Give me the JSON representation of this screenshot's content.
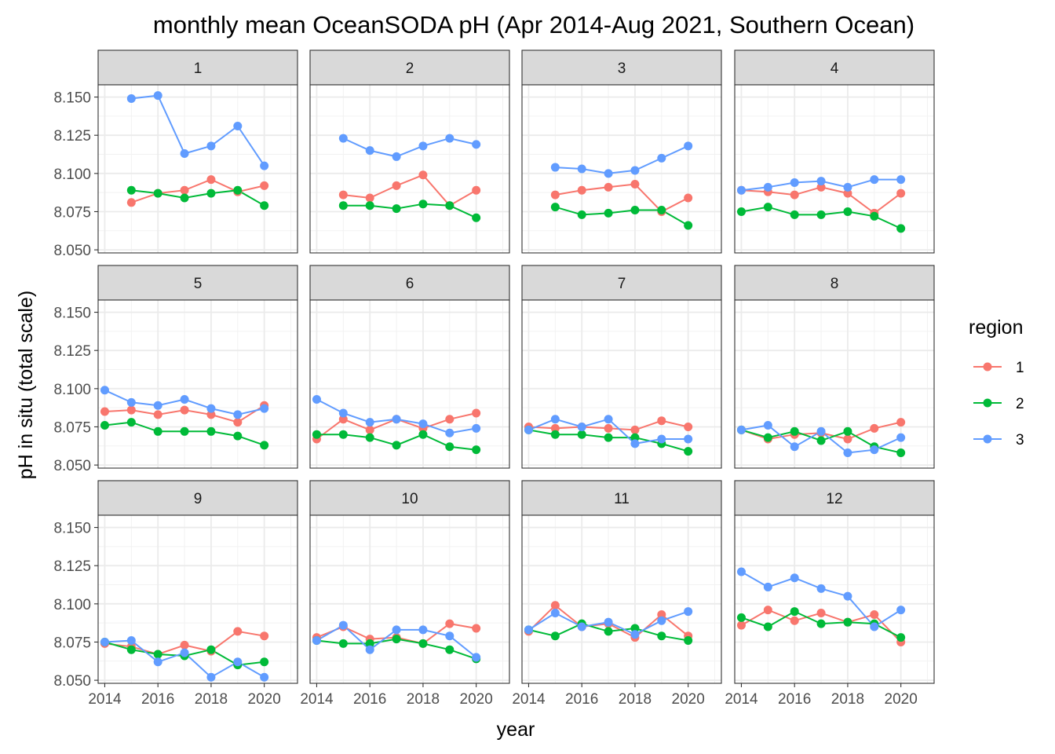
{
  "chart_data": {
    "type": "line",
    "title": "monthly mean OceanSODA pH (Apr 2014-Aug 2021, Southern Ocean)",
    "xlabel": "year",
    "ylabel": "pH in situ (total scale)",
    "x_ticks": [
      2014,
      2016,
      2018,
      2020
    ],
    "y_ticks": [
      8.05,
      8.075,
      8.1,
      8.125,
      8.15
    ],
    "y_tick_labels": [
      "8.050",
      "8.075",
      "8.100",
      "8.125",
      "8.150"
    ],
    "xlim": [
      2013.75,
      2021.25
    ],
    "ylim": [
      8.048,
      8.158
    ],
    "grid": true,
    "legend": {
      "title": "region",
      "placement": "right",
      "entries": [
        {
          "name": "1",
          "color": "#F8766D"
        },
        {
          "name": "2",
          "color": "#00BA38"
        },
        {
          "name": "3",
          "color": "#619CFF"
        }
      ]
    },
    "facet_rows": 3,
    "facet_cols": 4,
    "facets": [
      {
        "label": "1",
        "series": [
          {
            "name": "1",
            "x": [
              2015,
              2016,
              2017,
              2018,
              2019,
              2020
            ],
            "y": [
              8.081,
              8.087,
              8.089,
              8.096,
              8.088,
              8.092
            ]
          },
          {
            "name": "2",
            "x": [
              2015,
              2016,
              2017,
              2018,
              2019,
              2020
            ],
            "y": [
              8.089,
              8.087,
              8.084,
              8.087,
              8.089,
              8.079
            ]
          },
          {
            "name": "3",
            "x": [
              2015,
              2016,
              2017,
              2018,
              2019,
              2020
            ],
            "y": [
              8.149,
              8.151,
              8.113,
              8.118,
              8.131,
              8.105
            ]
          }
        ]
      },
      {
        "label": "2",
        "series": [
          {
            "name": "1",
            "x": [
              2015,
              2016,
              2017,
              2018,
              2019,
              2020
            ],
            "y": [
              8.086,
              8.084,
              8.092,
              8.099,
              8.079,
              8.089
            ]
          },
          {
            "name": "2",
            "x": [
              2015,
              2016,
              2017,
              2018,
              2019,
              2020
            ],
            "y": [
              8.079,
              8.079,
              8.077,
              8.08,
              8.079,
              8.071
            ]
          },
          {
            "name": "3",
            "x": [
              2015,
              2016,
              2017,
              2018,
              2019,
              2020
            ],
            "y": [
              8.123,
              8.115,
              8.111,
              8.118,
              8.123,
              8.119
            ]
          }
        ]
      },
      {
        "label": "3",
        "series": [
          {
            "name": "1",
            "x": [
              2015,
              2016,
              2017,
              2018,
              2019,
              2020
            ],
            "y": [
              8.086,
              8.089,
              8.091,
              8.093,
              8.075,
              8.084
            ]
          },
          {
            "name": "2",
            "x": [
              2015,
              2016,
              2017,
              2018,
              2019,
              2020
            ],
            "y": [
              8.078,
              8.073,
              8.074,
              8.076,
              8.076,
              8.066
            ]
          },
          {
            "name": "3",
            "x": [
              2015,
              2016,
              2017,
              2018,
              2019,
              2020
            ],
            "y": [
              8.104,
              8.103,
              8.1,
              8.102,
              8.11,
              8.118
            ]
          }
        ]
      },
      {
        "label": "4",
        "series": [
          {
            "name": "1",
            "x": [
              2014,
              2015,
              2016,
              2017,
              2018,
              2019,
              2020
            ],
            "y": [
              8.089,
              8.088,
              8.086,
              8.091,
              8.087,
              8.074,
              8.087
            ]
          },
          {
            "name": "2",
            "x": [
              2014,
              2015,
              2016,
              2017,
              2018,
              2019,
              2020
            ],
            "y": [
              8.075,
              8.078,
              8.073,
              8.073,
              8.075,
              8.072,
              8.064
            ]
          },
          {
            "name": "3",
            "x": [
              2014,
              2015,
              2016,
              2017,
              2018,
              2019,
              2020
            ],
            "y": [
              8.089,
              8.091,
              8.094,
              8.095,
              8.091,
              8.096,
              8.096
            ]
          }
        ]
      },
      {
        "label": "5",
        "series": [
          {
            "name": "1",
            "x": [
              2014,
              2015,
              2016,
              2017,
              2018,
              2019,
              2020
            ],
            "y": [
              8.085,
              8.086,
              8.083,
              8.086,
              8.083,
              8.078,
              8.089
            ]
          },
          {
            "name": "2",
            "x": [
              2014,
              2015,
              2016,
              2017,
              2018,
              2019,
              2020
            ],
            "y": [
              8.076,
              8.078,
              8.072,
              8.072,
              8.072,
              8.069,
              8.063
            ]
          },
          {
            "name": "3",
            "x": [
              2014,
              2015,
              2016,
              2017,
              2018,
              2019,
              2020
            ],
            "y": [
              8.099,
              8.091,
              8.089,
              8.093,
              8.087,
              8.083,
              8.087
            ]
          }
        ]
      },
      {
        "label": "6",
        "series": [
          {
            "name": "1",
            "x": [
              2014,
              2015,
              2016,
              2017,
              2018,
              2019,
              2020
            ],
            "y": [
              8.067,
              8.08,
              8.073,
              8.08,
              8.074,
              8.08,
              8.084
            ]
          },
          {
            "name": "2",
            "x": [
              2014,
              2015,
              2016,
              2017,
              2018,
              2019,
              2020
            ],
            "y": [
              8.07,
              8.07,
              8.068,
              8.063,
              8.07,
              8.062,
              8.06
            ]
          },
          {
            "name": "3",
            "x": [
              2014,
              2015,
              2016,
              2017,
              2018,
              2019,
              2020
            ],
            "y": [
              8.093,
              8.084,
              8.078,
              8.08,
              8.077,
              8.071,
              8.074
            ]
          }
        ]
      },
      {
        "label": "7",
        "series": [
          {
            "name": "1",
            "x": [
              2014,
              2015,
              2016,
              2017,
              2018,
              2019,
              2020
            ],
            "y": [
              8.075,
              8.074,
              8.075,
              8.074,
              8.073,
              8.079,
              8.075
            ]
          },
          {
            "name": "2",
            "x": [
              2014,
              2015,
              2016,
              2017,
              2018,
              2019,
              2020
            ],
            "y": [
              8.073,
              8.07,
              8.07,
              8.068,
              8.068,
              8.064,
              8.059
            ]
          },
          {
            "name": "3",
            "x": [
              2014,
              2015,
              2016,
              2017,
              2018,
              2019,
              2020
            ],
            "y": [
              8.073,
              8.08,
              8.075,
              8.08,
              8.064,
              8.067,
              8.067
            ]
          }
        ]
      },
      {
        "label": "8",
        "series": [
          {
            "name": "1",
            "x": [
              2014,
              2015,
              2016,
              2017,
              2018,
              2019,
              2020
            ],
            "y": [
              8.073,
              8.067,
              8.07,
              8.071,
              8.067,
              8.074,
              8.078
            ]
          },
          {
            "name": "2",
            "x": [
              2014,
              2015,
              2016,
              2017,
              2018,
              2019,
              2020
            ],
            "y": [
              8.073,
              8.068,
              8.072,
              8.066,
              8.072,
              8.062,
              8.058
            ]
          },
          {
            "name": "3",
            "x": [
              2014,
              2015,
              2016,
              2017,
              2018,
              2019,
              2020
            ],
            "y": [
              8.073,
              8.076,
              8.062,
              8.072,
              8.058,
              8.06,
              8.068
            ]
          }
        ]
      },
      {
        "label": "9",
        "series": [
          {
            "name": "1",
            "x": [
              2014,
              2015,
              2016,
              2017,
              2018,
              2019,
              2020
            ],
            "y": [
              8.074,
              8.072,
              8.067,
              8.073,
              8.069,
              8.082,
              8.079
            ]
          },
          {
            "name": "2",
            "x": [
              2014,
              2015,
              2016,
              2017,
              2018,
              2019,
              2020
            ],
            "y": [
              8.075,
              8.07,
              8.067,
              8.066,
              8.07,
              8.06,
              8.062
            ]
          },
          {
            "name": "3",
            "x": [
              2014,
              2015,
              2016,
              2017,
              2018,
              2019,
              2020
            ],
            "y": [
              8.075,
              8.076,
              8.062,
              8.068,
              8.052,
              8.062,
              8.052
            ]
          }
        ]
      },
      {
        "label": "10",
        "series": [
          {
            "name": "1",
            "x": [
              2014,
              2015,
              2016,
              2017,
              2018,
              2019,
              2020
            ],
            "y": [
              8.078,
              8.085,
              8.077,
              8.078,
              8.074,
              8.087,
              8.084
            ]
          },
          {
            "name": "2",
            "x": [
              2014,
              2015,
              2016,
              2017,
              2018,
              2019,
              2020
            ],
            "y": [
              8.076,
              8.074,
              8.074,
              8.077,
              8.074,
              8.07,
              8.064
            ]
          },
          {
            "name": "3",
            "x": [
              2014,
              2015,
              2016,
              2017,
              2018,
              2019,
              2020
            ],
            "y": [
              8.076,
              8.086,
              8.07,
              8.083,
              8.083,
              8.079,
              8.065
            ]
          }
        ]
      },
      {
        "label": "11",
        "series": [
          {
            "name": "1",
            "x": [
              2014,
              2015,
              2016,
              2017,
              2018,
              2019,
              2020
            ],
            "y": [
              8.082,
              8.099,
              8.085,
              8.087,
              8.078,
              8.093,
              8.079
            ]
          },
          {
            "name": "2",
            "x": [
              2014,
              2015,
              2016,
              2017,
              2018,
              2019,
              2020
            ],
            "y": [
              8.083,
              8.079,
              8.087,
              8.082,
              8.084,
              8.079,
              8.076
            ]
          },
          {
            "name": "3",
            "x": [
              2014,
              2015,
              2016,
              2017,
              2018,
              2019,
              2020
            ],
            "y": [
              8.083,
              8.094,
              8.085,
              8.088,
              8.08,
              8.089,
              8.095
            ]
          }
        ]
      },
      {
        "label": "12",
        "series": [
          {
            "name": "1",
            "x": [
              2014,
              2015,
              2016,
              2017,
              2018,
              2019,
              2020
            ],
            "y": [
              8.086,
              8.096,
              8.089,
              8.094,
              8.088,
              8.093,
              8.075
            ]
          },
          {
            "name": "2",
            "x": [
              2014,
              2015,
              2016,
              2017,
              2018,
              2019,
              2020
            ],
            "y": [
              8.091,
              8.085,
              8.095,
              8.087,
              8.088,
              8.087,
              8.078
            ]
          },
          {
            "name": "3",
            "x": [
              2014,
              2015,
              2016,
              2017,
              2018,
              2019,
              2020
            ],
            "y": [
              8.121,
              8.111,
              8.117,
              8.11,
              8.105,
              8.085,
              8.096
            ]
          }
        ]
      }
    ]
  }
}
